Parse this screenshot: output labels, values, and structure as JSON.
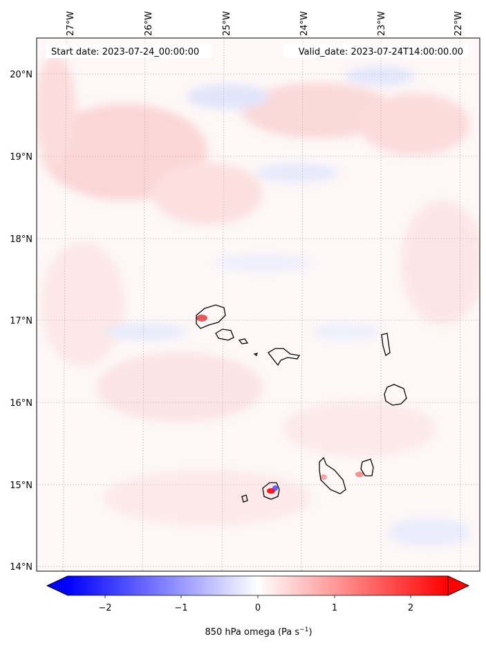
{
  "map": {
    "start_label": "Start date: 2023-07-24_00:00:00",
    "valid_label": "Valid_date: 2023-07-24T14:00:00.00",
    "lon_ticks": [
      "27°W",
      "26°W",
      "25°W",
      "24°W",
      "23°W",
      "22°W"
    ],
    "lat_ticks": [
      "20°N",
      "19°N",
      "18°N",
      "17°N",
      "16°N",
      "15°N",
      "14°N"
    ],
    "gridlines": true,
    "field": "850 hPa omega",
    "region": "Cabo Verde islands"
  },
  "colorbar": {
    "label_text": "850 hPa omega (Pa s",
    "label_sup": "−1",
    "label_close": ")",
    "ticks": [
      "−2",
      "−1",
      "0",
      "1",
      "2"
    ],
    "range": [
      -2.5,
      2.5
    ],
    "extend": "both",
    "colormap": "bwr",
    "negative_color": "#0000ff",
    "zero_color": "#ffffff",
    "positive_color": "#ff0000"
  }
}
